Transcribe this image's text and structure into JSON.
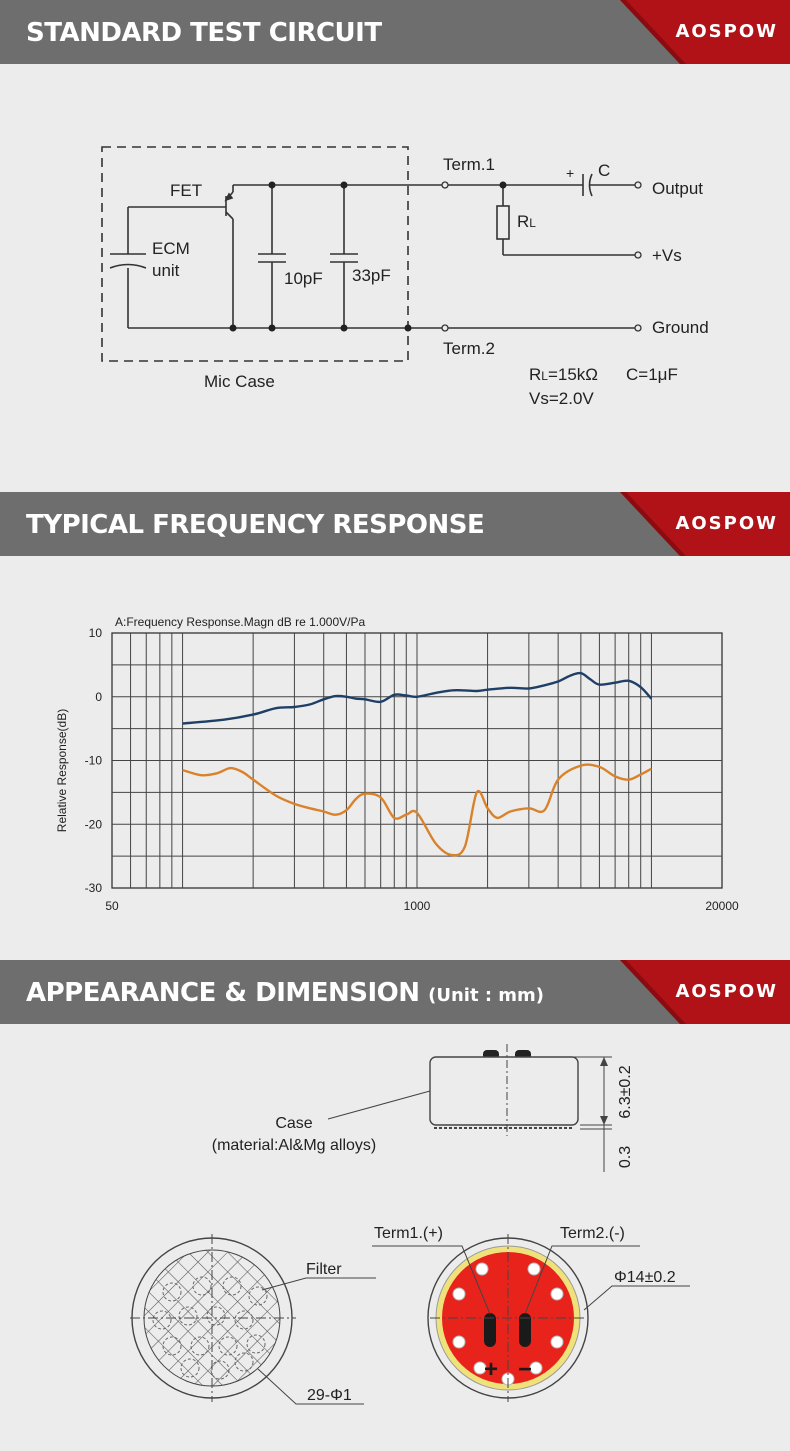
{
  "brand": {
    "name": "AOSPOW",
    "color": "#b01218"
  },
  "sections": {
    "circuit": {
      "title": "STANDARD TEST CIRCUIT"
    },
    "frequency": {
      "title": "TYPICAL FREQUENCY RESPONSE"
    },
    "appearance": {
      "title": "APPEARANCE & DIMENSION",
      "unit": "(Unit : mm)"
    }
  },
  "circuit": {
    "fet": "FET",
    "ecm": "ECM",
    "ecm_unit": "unit",
    "cap1": "10pF",
    "cap2": "33pF",
    "mic_case": "Mic Case",
    "term1": "Term.1",
    "term2": "Term.2",
    "rl_prefix": "R",
    "rl_sub": "L",
    "c_plus": "+",
    "c_label": "C",
    "output": "Output",
    "vs": "+Vs",
    "ground": "Ground",
    "spec_rl_prefix": "R",
    "spec_rl_sub": "L",
    "spec_rl_value": "=15kΩ",
    "spec_c": "C=1μF",
    "spec_vs": "Vs=2.0V"
  },
  "chart_data": {
    "type": "line",
    "title": "A:Frequency Response.Magn dB re 1.000V/Pa",
    "xlabel": "",
    "ylabel": "Relative Response(dB)",
    "x_scale": "log",
    "xlim": [
      50,
      20000
    ],
    "ylim": [
      -30,
      10
    ],
    "x_tick_labels": [
      "50",
      "1000",
      "20000"
    ],
    "y_tick_labels": [
      "10",
      "0",
      "-10",
      "-20",
      "-30"
    ],
    "grid": true,
    "series": [
      {
        "color": "#1f3f66",
        "x": [
          100,
          150,
          200,
          250,
          300,
          350,
          400,
          450,
          500,
          550,
          600,
          700,
          800,
          900,
          1000,
          1200,
          1400,
          1600,
          1800,
          2000,
          2500,
          3000,
          3500,
          4000,
          4500,
          5000,
          5500,
          6000,
          7000,
          8000,
          9000,
          10000
        ],
        "y": [
          -4.2,
          -3.6,
          -2.8,
          -1.8,
          -1.6,
          -1.2,
          -0.4,
          0.1,
          0.0,
          -0.3,
          -0.4,
          -0.8,
          0.3,
          0.2,
          0.0,
          0.6,
          1.0,
          1.0,
          0.9,
          1.1,
          1.4,
          1.3,
          1.8,
          2.4,
          3.3,
          3.7,
          2.7,
          1.9,
          2.2,
          2.5,
          1.5,
          -0.3
        ]
      },
      {
        "color": "#d9822b",
        "x": [
          100,
          120,
          140,
          160,
          180,
          200,
          250,
          300,
          350,
          400,
          450,
          500,
          550,
          600,
          700,
          800,
          900,
          1000,
          1200,
          1400,
          1600,
          1800,
          2000,
          2200,
          2500,
          3000,
          3500,
          4000,
          5000,
          6000,
          7000,
          8000,
          9000,
          10000
        ],
        "y": [
          -11.5,
          -12.3,
          -12.0,
          -11.2,
          -11.8,
          -13.0,
          -15.5,
          -16.8,
          -17.5,
          -18.0,
          -18.5,
          -17.8,
          -16.0,
          -15.2,
          -15.8,
          -19.0,
          -18.5,
          -18.2,
          -23.0,
          -24.8,
          -23.5,
          -15.0,
          -17.5,
          -19.0,
          -18.0,
          -17.5,
          -17.8,
          -13.0,
          -10.8,
          -11.0,
          -12.5,
          -13.0,
          -12.2,
          -11.3
        ]
      }
    ]
  },
  "appearance": {
    "case_label": "Case",
    "case_material": "(material:Al&Mg alloys)",
    "dim_height": "6.3±0.2",
    "dim_base": "0.3",
    "filter": "Filter",
    "holes": "29-Φ1",
    "term1": "Term1.(+)",
    "term2": "Term2.(-)",
    "diameter": "Φ14±0.2",
    "plus": "+",
    "minus": "−",
    "pcb_color": "#e8231c",
    "ring_color": "#f0e27a"
  }
}
